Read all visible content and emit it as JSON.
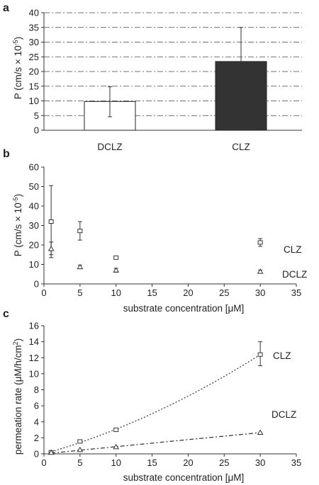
{
  "chart_data": [
    {
      "panel": "a",
      "type": "bar",
      "categories": [
        "DCLZ",
        "CLZ"
      ],
      "values": [
        9.8,
        23.4
      ],
      "error_upper": [
        14.8,
        35.0
      ],
      "error_lower": [
        4.6,
        23.4
      ],
      "bar_colors": [
        "#ffffff",
        "#333333"
      ],
      "ylabel": "P (cm/s × 10⁻⁵)",
      "ylim": [
        0,
        40
      ],
      "yticks": [
        "0",
        "5",
        "10",
        "15",
        "20",
        "25",
        "30",
        "35",
        "40"
      ],
      "grid": "horizontal dash-dot"
    },
    {
      "panel": "b",
      "type": "scatter",
      "xlabel": "substrate concentration [μM]",
      "ylabel": "P (cm/s × 10⁻⁵)",
      "xlim": [
        0,
        35
      ],
      "ylim": [
        0,
        60
      ],
      "xticks": [
        "0",
        "5",
        "10",
        "15",
        "20",
        "25",
        "30",
        "35"
      ],
      "yticks": [
        "0",
        "10",
        "20",
        "30",
        "40",
        "50",
        "60"
      ],
      "series": [
        {
          "name": "CLZ",
          "marker": "square",
          "points": [
            {
              "x": 1,
              "y": 32.0,
              "ylo": 13.5,
              "yhi": 50.5
            },
            {
              "x": 5,
              "y": 27.2,
              "ylo": 22.5,
              "yhi": 32.0
            },
            {
              "x": 10,
              "y": 13.5,
              "ylo": 13.0,
              "yhi": 14.0
            },
            {
              "x": 30,
              "y": 21.3,
              "ylo": 19.3,
              "yhi": 23.3
            }
          ]
        },
        {
          "name": "DCLZ",
          "marker": "triangle",
          "points": [
            {
              "x": 1,
              "y": 18.0,
              "ylo": 15.0,
              "yhi": 21.5
            },
            {
              "x": 5,
              "y": 8.7,
              "ylo": 7.8,
              "yhi": 9.6
            },
            {
              "x": 10,
              "y": 7.0,
              "ylo": 6.0,
              "yhi": 8.0
            },
            {
              "x": 30,
              "y": 6.3,
              "ylo": 5.5,
              "yhi": 7.1
            }
          ]
        }
      ]
    },
    {
      "panel": "c",
      "type": "scatter",
      "xlabel": "substrate concentration [μM]",
      "ylabel": "permeation rate (μM/h/cm²)",
      "xlim": [
        0,
        35
      ],
      "ylim": [
        0,
        16
      ],
      "xticks": [
        "0",
        "5",
        "10",
        "15",
        "20",
        "25",
        "30",
        "35"
      ],
      "yticks": [
        "0",
        "2",
        "4",
        "6",
        "8",
        "10",
        "12",
        "14",
        "16"
      ],
      "series": [
        {
          "name": "CLZ",
          "marker": "square",
          "fit": "dotted curve",
          "points": [
            {
              "x": 1,
              "y": 0.2,
              "ylo": 0.1,
              "yhi": 0.3
            },
            {
              "x": 5,
              "y": 1.55,
              "ylo": 1.45,
              "yhi": 1.65
            },
            {
              "x": 10,
              "y": 3.0,
              "ylo": 2.9,
              "yhi": 3.1
            },
            {
              "x": 30,
              "y": 12.4,
              "ylo": 11.0,
              "yhi": 14.0
            }
          ]
        },
        {
          "name": "DCLZ",
          "marker": "triangle",
          "fit": "dash-dot curve",
          "points": [
            {
              "x": 1,
              "y": 0.15,
              "ylo": 0.1,
              "yhi": 0.2
            },
            {
              "x": 5,
              "y": 0.5,
              "ylo": 0.45,
              "yhi": 0.55
            },
            {
              "x": 10,
              "y": 0.85,
              "ylo": 0.8,
              "yhi": 0.9
            },
            {
              "x": 30,
              "y": 2.65,
              "ylo": 2.55,
              "yhi": 2.75
            }
          ]
        }
      ]
    }
  ]
}
